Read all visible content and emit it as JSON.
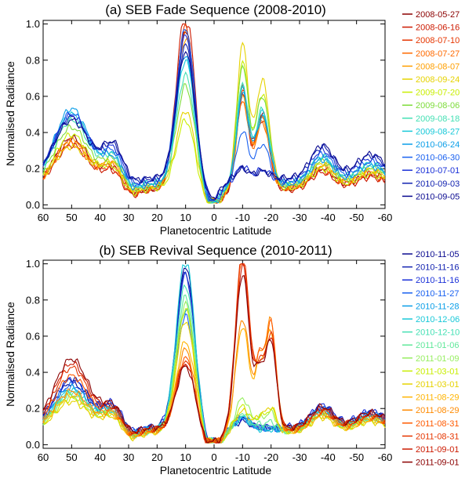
{
  "chart_data": [
    {
      "type": "line",
      "title": "(a) SEB Fade Sequence (2008-2010)",
      "xlabel": "Planetocentric Latitude",
      "ylabel": "Normalised Radiance",
      "xlim": [
        60,
        -60
      ],
      "ylim": [
        -0.02,
        1.02
      ],
      "xticks": [
        60,
        50,
        40,
        30,
        20,
        10,
        0,
        -10,
        -20,
        -30,
        -40,
        -50,
        -60
      ],
      "yticks": [
        0.0,
        0.2,
        0.4,
        0.6,
        0.8,
        1.0
      ],
      "ytick_labels": [
        "0.0",
        "0.2",
        "0.4",
        "0.6",
        "0.8",
        "1.0"
      ],
      "legend_position": "right",
      "series": [
        {
          "name": "2008-05-27",
          "color": "#8b0000",
          "amp": 0.88,
          "s2": 0.55,
          "base": 0.2,
          "nb": 0.28
        },
        {
          "name": "2008-06-16",
          "color": "#cc1a00",
          "amp": 1.0,
          "s2": 0.52,
          "base": 0.18,
          "nb": 0.25
        },
        {
          "name": "2008-07-10",
          "color": "#e63600",
          "amp": 0.9,
          "s2": 0.55,
          "base": 0.19,
          "nb": 0.27
        },
        {
          "name": "2008-07-27",
          "color": "#ff6a00",
          "amp": 0.86,
          "s2": 0.48,
          "base": 0.21,
          "nb": 0.24
        },
        {
          "name": "2008-08-07",
          "color": "#ff9f00",
          "amp": 0.82,
          "s2": 0.5,
          "base": 0.22,
          "nb": 0.26
        },
        {
          "name": "2008-09-24",
          "color": "#e6d200",
          "amp": 0.42,
          "s2": 0.78,
          "base": 0.23,
          "nb": 0.22
        },
        {
          "name": "2009-07-20",
          "color": "#c8ee00",
          "amp": 0.38,
          "s2": 0.7,
          "base": 0.2,
          "nb": 0.3
        },
        {
          "name": "2009-08-06",
          "color": "#7ddc3a",
          "amp": 0.55,
          "s2": 0.66,
          "base": 0.24,
          "nb": 0.32
        },
        {
          "name": "2009-08-18",
          "color": "#44e0b4",
          "amp": 0.6,
          "s2": 0.55,
          "base": 0.26,
          "nb": 0.35
        },
        {
          "name": "2009-08-27",
          "color": "#18c8d8",
          "amp": 0.68,
          "s2": 0.52,
          "base": 0.27,
          "nb": 0.38
        },
        {
          "name": "2010-06-24",
          "color": "#0a9ee8",
          "amp": 0.72,
          "s2": 0.5,
          "base": 0.25,
          "nb": 0.42
        },
        {
          "name": "2010-06-30",
          "color": "#1860f0",
          "amp": 0.85,
          "s2": 0.28,
          "base": 0.28,
          "nb": 0.38
        },
        {
          "name": "2010-07-01",
          "color": "#1a30d8",
          "amp": 0.8,
          "s2": 0.08,
          "base": 0.3,
          "nb": 0.36
        },
        {
          "name": "2010-09-03",
          "color": "#1222b0",
          "amp": 0.74,
          "s2": 0.06,
          "base": 0.32,
          "nb": 0.34
        },
        {
          "name": "2010-09-05",
          "color": "#0a0a90",
          "amp": 0.7,
          "s2": 0.05,
          "base": 0.33,
          "nb": 0.32
        }
      ]
    },
    {
      "type": "line",
      "title": "(b) SEB Revival Sequence (2010-2011)",
      "xlabel": "Planetocentric Latitude",
      "ylabel": "Normalised Radiance",
      "xlim": [
        60,
        -60
      ],
      "ylim": [
        -0.02,
        1.02
      ],
      "xticks": [
        60,
        50,
        40,
        30,
        20,
        10,
        0,
        -10,
        -20,
        -30,
        -40,
        -50,
        -60
      ],
      "yticks": [
        0.0,
        0.2,
        0.4,
        0.6,
        0.8,
        1.0
      ],
      "ytick_labels": [
        "0.0",
        "0.2",
        "0.4",
        "0.6",
        "0.8",
        "1.0"
      ],
      "legend_position": "right",
      "series": [
        {
          "name": "2010-11-05",
          "color": "#0a0a90",
          "amp": 0.9,
          "s2": 0.04,
          "s3": 0.0,
          "base": 0.2,
          "nb": 0.25
        },
        {
          "name": "2010-11-16",
          "color": "#1222b0",
          "amp": 0.86,
          "s2": 0.05,
          "s3": 0.0,
          "base": 0.21,
          "nb": 0.27
        },
        {
          "name": "2010-11-16",
          "color": "#1a30d8",
          "amp": 0.84,
          "s2": 0.05,
          "s3": 0.0,
          "base": 0.22,
          "nb": 0.26
        },
        {
          "name": "2010-11-27",
          "color": "#1860f0",
          "amp": 0.62,
          "s2": 0.06,
          "s3": 0.0,
          "base": 0.2,
          "nb": 0.24
        },
        {
          "name": "2010-11-28",
          "color": "#0a9ee8",
          "amp": 0.66,
          "s2": 0.06,
          "s3": 0.0,
          "base": 0.19,
          "nb": 0.23
        },
        {
          "name": "2010-12-06",
          "color": "#18c8d8",
          "amp": 0.95,
          "s2": 0.07,
          "s3": 0.0,
          "base": 0.18,
          "nb": 0.22
        },
        {
          "name": "2010-12-10",
          "color": "#44e0b4",
          "amp": 0.8,
          "s2": 0.08,
          "s3": 0.02,
          "base": 0.18,
          "nb": 0.21
        },
        {
          "name": "2011-01-06",
          "color": "#60e89a",
          "amp": 0.74,
          "s2": 0.1,
          "s3": 0.05,
          "base": 0.17,
          "nb": 0.2
        },
        {
          "name": "2011-01-09",
          "color": "#96ee60",
          "amp": 0.7,
          "s2": 0.18,
          "s3": 0.1,
          "base": 0.17,
          "nb": 0.19
        },
        {
          "name": "2011-03-01",
          "color": "#c8ee00",
          "amp": 0.68,
          "s2": 0.14,
          "s3": 0.12,
          "base": 0.16,
          "nb": 0.18
        },
        {
          "name": "2011-03-01",
          "color": "#e6d200",
          "amp": 0.62,
          "s2": 0.12,
          "s3": 0.14,
          "base": 0.15,
          "nb": 0.17
        },
        {
          "name": "2011-08-29",
          "color": "#ffb400",
          "amp": 0.5,
          "s2": 0.58,
          "s3": 0.55,
          "base": 0.16,
          "nb": 0.2
        },
        {
          "name": "2011-08-29",
          "color": "#ff8a00",
          "amp": 0.45,
          "s2": 0.62,
          "s3": 0.6,
          "base": 0.17,
          "nb": 0.22
        },
        {
          "name": "2011-08-31",
          "color": "#ff5a00",
          "amp": 0.4,
          "s2": 0.96,
          "s3": 0.58,
          "base": 0.18,
          "nb": 0.3
        },
        {
          "name": "2011-08-31",
          "color": "#e63600",
          "amp": 0.38,
          "s2": 1.0,
          "s3": 0.52,
          "base": 0.19,
          "nb": 0.34
        },
        {
          "name": "2011-09-01",
          "color": "#cc1a00",
          "amp": 0.36,
          "s2": 0.9,
          "s3": 0.5,
          "base": 0.2,
          "nb": 0.36
        },
        {
          "name": "2011-09-01",
          "color": "#8b0000",
          "amp": 0.34,
          "s2": 0.85,
          "s3": 0.48,
          "base": 0.21,
          "nb": 0.38
        }
      ]
    }
  ]
}
